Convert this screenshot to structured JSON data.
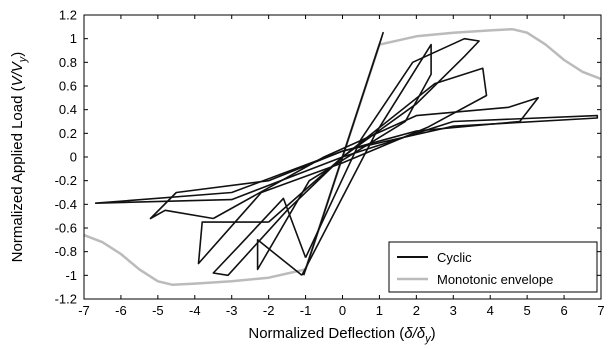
{
  "chart_data": {
    "type": "line",
    "title": "",
    "xlabel": {
      "prefix": "Normalized Deflection (",
      "var": "δ/δ",
      "sub": "y",
      "suffix": ")"
    },
    "ylabel": {
      "prefix": "Normalized Applied Load (",
      "var": "V/V",
      "sub": "y",
      "suffix": ")"
    },
    "xlim": [
      -7,
      7
    ],
    "ylim": [
      -1.2,
      1.2
    ],
    "x_ticks": [
      "-7",
      "-6",
      "-5",
      "-4",
      "-3",
      "-2",
      "-1",
      "0",
      "1",
      "2",
      "3",
      "4",
      "5",
      "6",
      "7"
    ],
    "y_ticks": [
      "-1.2",
      "-1",
      "-0.8",
      "-0.6",
      "-0.4",
      "-0.2",
      "0",
      "0.2",
      "0.4",
      "0.6",
      "0.8",
      "1",
      "1.2"
    ],
    "grid": false,
    "legend_position": "bottom-right",
    "series": [
      {
        "name": "Cyclic",
        "color": "#111111",
        "style": "hysteresis-loops",
        "loops": [
          {
            "x": [
              -1.05,
              1.05,
              1.1,
              -1.0,
              -1.05
            ],
            "y": [
              -1.0,
              1.0,
              1.05,
              -0.95,
              -1.0
            ]
          },
          {
            "x": [
              -1.1,
              0.9,
              2.4,
              2.4,
              1.7,
              -0.9,
              -2.3,
              -2.3,
              -1.1
            ],
            "y": [
              -1.0,
              0.2,
              0.95,
              0.7,
              0.3,
              -0.2,
              -0.95,
              -0.7,
              -1.0
            ]
          },
          {
            "x": [
              -1.0,
              0.5,
              1.9,
              3.3,
              3.7,
              3.3,
              2.0,
              0.0,
              -1.5,
              -3.1,
              -3.5,
              -2.8,
              -1.6,
              -1.0
            ],
            "y": [
              -0.85,
              0.15,
              0.8,
              1.0,
              0.98,
              0.85,
              0.45,
              0.0,
              -0.45,
              -1.0,
              -0.98,
              -0.75,
              -0.35,
              -0.85
            ]
          },
          {
            "x": [
              -2.0,
              0.0,
              2.5,
              3.8,
              3.9,
              2.3,
              0.0,
              -2.2,
              -3.9,
              -3.8,
              -2.0
            ],
            "y": [
              -0.55,
              0.0,
              0.62,
              0.75,
              0.52,
              0.25,
              -0.05,
              -0.3,
              -0.9,
              -0.55,
              -0.55
            ]
          },
          {
            "x": [
              -3.5,
              -0.5,
              2.0,
              4.5,
              5.3,
              4.8,
              2.0,
              0.0,
              -2.0,
              -4.5,
              -5.2,
              -4.8,
              -3.5
            ],
            "y": [
              -0.52,
              0.0,
              0.35,
              0.42,
              0.5,
              0.3,
              0.22,
              0.05,
              -0.2,
              -0.3,
              -0.52,
              -0.45,
              -0.52
            ]
          },
          {
            "x": [
              -6.7,
              -3.0,
              0.0,
              3.0,
              6.9,
              6.9,
              3.0,
              0.0,
              -3.0,
              -6.7
            ],
            "y": [
              -0.39,
              -0.36,
              0.0,
              0.3,
              0.35,
              0.33,
              0.26,
              0.05,
              -0.3,
              -0.39
            ]
          }
        ]
      },
      {
        "name": "Monotonic envelope",
        "color": "#bbbbbb",
        "style": "envelope",
        "positive": {
          "x": [
            0.0,
            1.0,
            2.0,
            3.0,
            4.0,
            4.6,
            5.0,
            5.5,
            6.0,
            6.5,
            7.0
          ],
          "y": [
            0.0,
            0.95,
            1.02,
            1.05,
            1.07,
            1.08,
            1.05,
            0.95,
            0.82,
            0.72,
            0.66
          ]
        },
        "negative": {
          "x": [
            0.0,
            -1.0,
            -2.0,
            -3.0,
            -4.0,
            -4.6,
            -5.0,
            -5.5,
            -6.0,
            -6.5,
            -7.0
          ],
          "y": [
            0.0,
            -0.95,
            -1.02,
            -1.05,
            -1.07,
            -1.08,
            -1.05,
            -0.95,
            -0.82,
            -0.72,
            -0.66
          ]
        }
      }
    ]
  }
}
